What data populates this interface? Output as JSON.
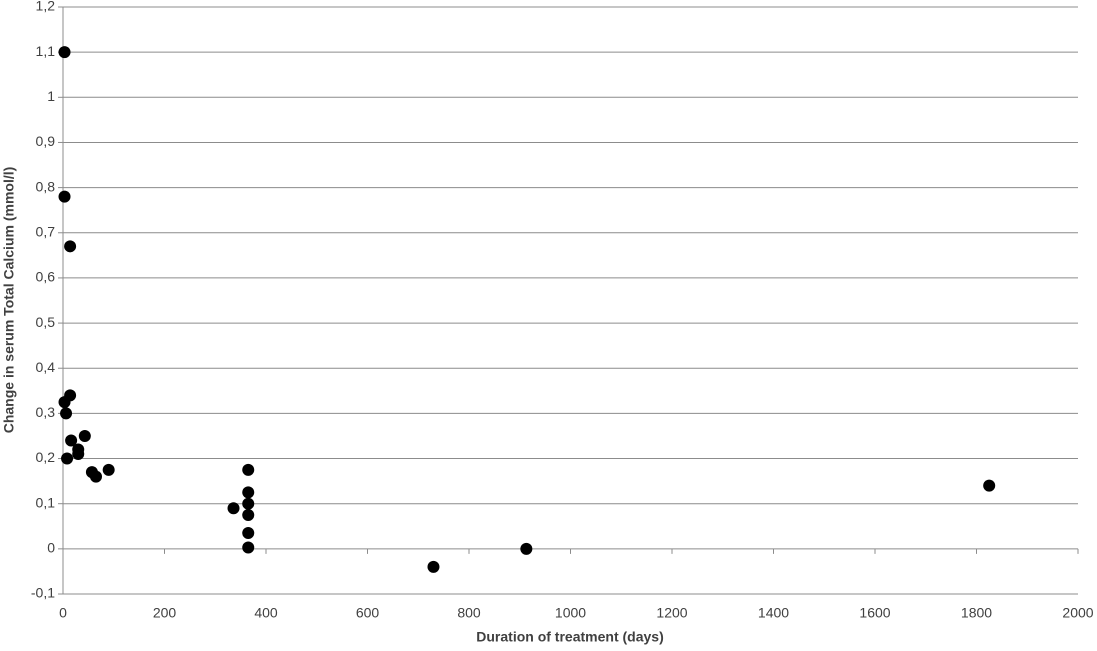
{
  "chart_data": {
    "type": "scatter",
    "x_label": "Duration of treatment (days)",
    "y_label": "Change in serum Total Calcium (mmol/l)",
    "x": [
      3,
      3,
      14,
      3,
      6,
      14,
      8,
      16,
      30,
      30,
      43,
      57,
      65,
      90,
      336,
      365,
      365,
      365,
      365,
      365,
      365,
      730,
      913,
      1825
    ],
    "values": [
      1.1,
      0.78,
      0.67,
      0.325,
      0.3,
      0.34,
      0.2,
      0.24,
      0.22,
      0.21,
      0.25,
      0.17,
      0.16,
      0.175,
      0.09,
      0.175,
      0.125,
      0.1,
      0.075,
      0.035,
      0.003,
      -0.04,
      0,
      0.14
    ],
    "color": "#000000",
    "xlim": [
      0,
      2000
    ],
    "xticks": [
      0,
      200,
      400,
      600,
      800,
      1000,
      1200,
      1400,
      1600,
      1800,
      2000
    ],
    "ylim": [
      -0.1,
      1.2
    ],
    "yticks": [
      {
        "value": -0.1,
        "label": "-0,1"
      },
      0,
      {
        "value": 0.1,
        "label": "0,1"
      },
      {
        "value": 0.2,
        "label": "0,2"
      },
      {
        "value": 0.3,
        "label": "0,3"
      },
      {
        "value": 0.4,
        "label": "0,4"
      },
      {
        "value": 0.5,
        "label": "0,5"
      },
      {
        "value": 0.6,
        "label": "0,6"
      },
      {
        "value": 0.7,
        "label": "0,7"
      },
      {
        "value": 0.8,
        "label": "0,8"
      },
      {
        "value": 0.9,
        "label": "0,9"
      },
      1,
      {
        "value": 1.1,
        "label": "1,1"
      },
      {
        "value": 1.2,
        "label": "1,2"
      }
    ],
    "grid": true
  }
}
